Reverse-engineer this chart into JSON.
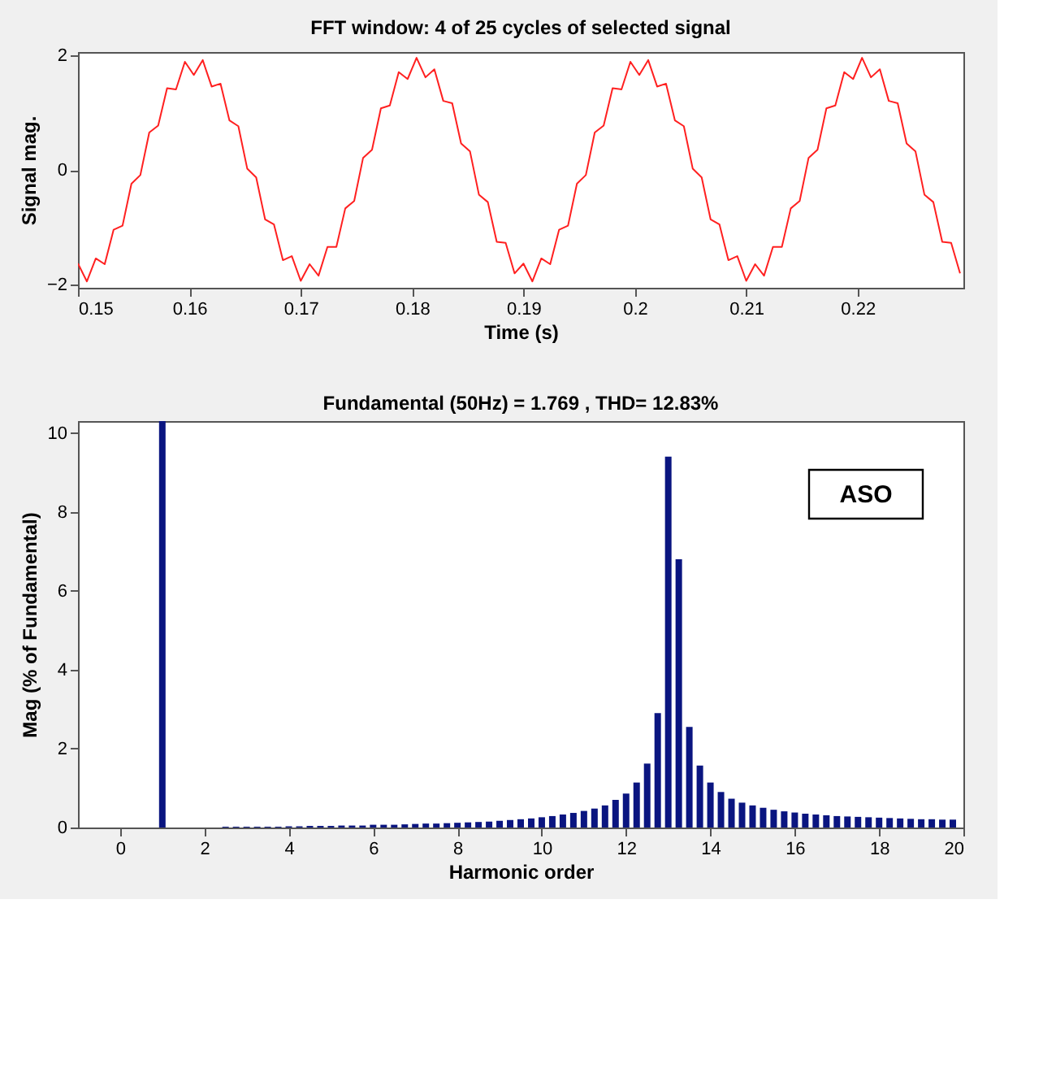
{
  "chart_data": [
    {
      "type": "line",
      "title": "FFT window: 4 of 25 cycles of selected signal",
      "xlabel": "Time (s)",
      "ylabel": "Signal mag.",
      "x": [
        0.15,
        0.1508,
        0.1516,
        0.1524,
        0.1532,
        0.154,
        0.1548,
        0.1556,
        0.1564,
        0.1572,
        0.158,
        0.1588,
        0.1596,
        0.1604,
        0.1612,
        0.162,
        0.1628,
        0.1636,
        0.1644,
        0.1652,
        0.166,
        0.1668,
        0.1676,
        0.1684,
        0.1692,
        0.17,
        0.1708,
        0.1716,
        0.1724,
        0.1732,
        0.174,
        0.1748,
        0.1756,
        0.1764,
        0.1772,
        0.178,
        0.1788,
        0.1796,
        0.1804,
        0.1812,
        0.182,
        0.1828,
        0.1836,
        0.1844,
        0.1852,
        0.186,
        0.1868,
        0.1876,
        0.1884,
        0.1892,
        0.19,
        0.1908,
        0.1916,
        0.1924,
        0.1932,
        0.194,
        0.1948,
        0.1956,
        0.1964,
        0.1972,
        0.198,
        0.1988,
        0.1996,
        0.2004,
        0.2012,
        0.202,
        0.2028,
        0.2036,
        0.2044,
        0.2052,
        0.206,
        0.2068,
        0.2076,
        0.2084,
        0.2092,
        0.21,
        0.2108,
        0.2116,
        0.2124,
        0.2132,
        0.214,
        0.2148,
        0.2156,
        0.2164,
        0.2172,
        0.218,
        0.2188,
        0.2196,
        0.2204,
        0.2212,
        0.222,
        0.2228,
        0.2236,
        0.2244,
        0.2252,
        0.226,
        0.2268,
        0.2276,
        0.2284,
        0.2292
      ],
      "series": [
        {
          "color": "#ff2020",
          "values": [
            -1.63,
            -1.94,
            -1.54,
            -1.64,
            -1.04,
            -0.97,
            -0.24,
            -0.09,
            0.65,
            0.77,
            1.42,
            1.4,
            1.88,
            1.65,
            1.91,
            1.45,
            1.5,
            0.86,
            0.76,
            0.02,
            -0.13,
            -0.86,
            -0.95,
            -1.57,
            -1.5,
            -1.93,
            -1.64,
            -1.84,
            -1.34,
            -1.34,
            -0.67,
            -0.54,
            0.21,
            0.35,
            1.07,
            1.12,
            1.7,
            1.58,
            1.95,
            1.61,
            1.75,
            1.2,
            1.16,
            0.46,
            0.32,
            -0.43,
            -0.56,
            -1.25,
            -1.27,
            -1.8,
            -1.63,
            -1.94,
            -1.54,
            -1.64,
            -1.04,
            -0.97,
            -0.24,
            -0.09,
            0.65,
            0.77,
            1.42,
            1.4,
            1.88,
            1.65,
            1.91,
            1.45,
            1.5,
            0.86,
            0.76,
            0.02,
            -0.13,
            -0.86,
            -0.95,
            -1.57,
            -1.5,
            -1.93,
            -1.64,
            -1.84,
            -1.34,
            -1.34,
            -0.67,
            -0.54,
            0.21,
            0.35,
            1.07,
            1.12,
            1.7,
            1.58,
            1.95,
            1.61,
            1.75,
            1.2,
            1.16,
            0.46,
            0.32,
            -0.43,
            -0.56,
            -1.25,
            -1.27,
            -1.8
          ]
        }
      ],
      "xlim": [
        0.15,
        0.2295
      ],
      "xticks": [
        0.15,
        0.16,
        0.17,
        0.18,
        0.19,
        0.2,
        0.21,
        0.22
      ],
      "ylim": [
        -2.05,
        2.05
      ],
      "yticks": [
        -2,
        0,
        2
      ],
      "marker": "none",
      "line_style": "solid",
      "grid": false,
      "legend": false
    },
    {
      "type": "bar",
      "title": "Fundamental (50Hz) = 1.769 , THD= 12.83%",
      "xlabel": "Harmonic order",
      "ylabel": "Mag (% of Fundamental)",
      "x": [
        1,
        2.5,
        2.75,
        3,
        3.25,
        3.5,
        3.75,
        4,
        4.25,
        4.5,
        4.75,
        5,
        5.25,
        5.5,
        5.75,
        6,
        6.25,
        6.5,
        6.75,
        7,
        7.25,
        7.5,
        7.75,
        8,
        8.25,
        8.5,
        8.75,
        9,
        9.25,
        9.5,
        9.75,
        10,
        10.25,
        10.5,
        10.75,
        11,
        11.25,
        11.5,
        11.75,
        12,
        12.25,
        12.5,
        12.75,
        13,
        13.25,
        13.5,
        13.75,
        14,
        14.25,
        14.5,
        14.75,
        15,
        15.25,
        15.5,
        15.75,
        16,
        16.25,
        16.5,
        16.75,
        17,
        17.25,
        17.5,
        17.75,
        18,
        18.25,
        18.5,
        18.75,
        19,
        19.25,
        19.5,
        19.75
      ],
      "series": [
        {
          "color": "#0a1580",
          "values": [
            10.3,
            0.02,
            0.02,
            0.02,
            0.02,
            0.02,
            0.02,
            0.03,
            0.03,
            0.04,
            0.04,
            0.04,
            0.05,
            0.05,
            0.05,
            0.07,
            0.07,
            0.07,
            0.08,
            0.09,
            0.1,
            0.1,
            0.11,
            0.12,
            0.13,
            0.14,
            0.15,
            0.17,
            0.19,
            0.21,
            0.23,
            0.26,
            0.29,
            0.33,
            0.37,
            0.42,
            0.48,
            0.56,
            0.7,
            0.86,
            1.14,
            1.62,
            2.9,
            9.4,
            6.8,
            2.55,
            1.57,
            1.14,
            0.9,
            0.73,
            0.63,
            0.56,
            0.5,
            0.45,
            0.41,
            0.38,
            0.35,
            0.33,
            0.31,
            0.29,
            0.28,
            0.27,
            0.26,
            0.25,
            0.24,
            0.23,
            0.22,
            0.21,
            0.21,
            0.2,
            0.2
          ]
        }
      ],
      "xlim": [
        -1,
        20
      ],
      "xticks": [
        0,
        2,
        4,
        6,
        8,
        10,
        12,
        14,
        16,
        18,
        20
      ],
      "ylim": [
        0,
        10.3
      ],
      "yticks": [
        0,
        2,
        4,
        6,
        8,
        10
      ],
      "grid": false,
      "legend": false,
      "annotations": [
        "ASO"
      ]
    }
  ]
}
